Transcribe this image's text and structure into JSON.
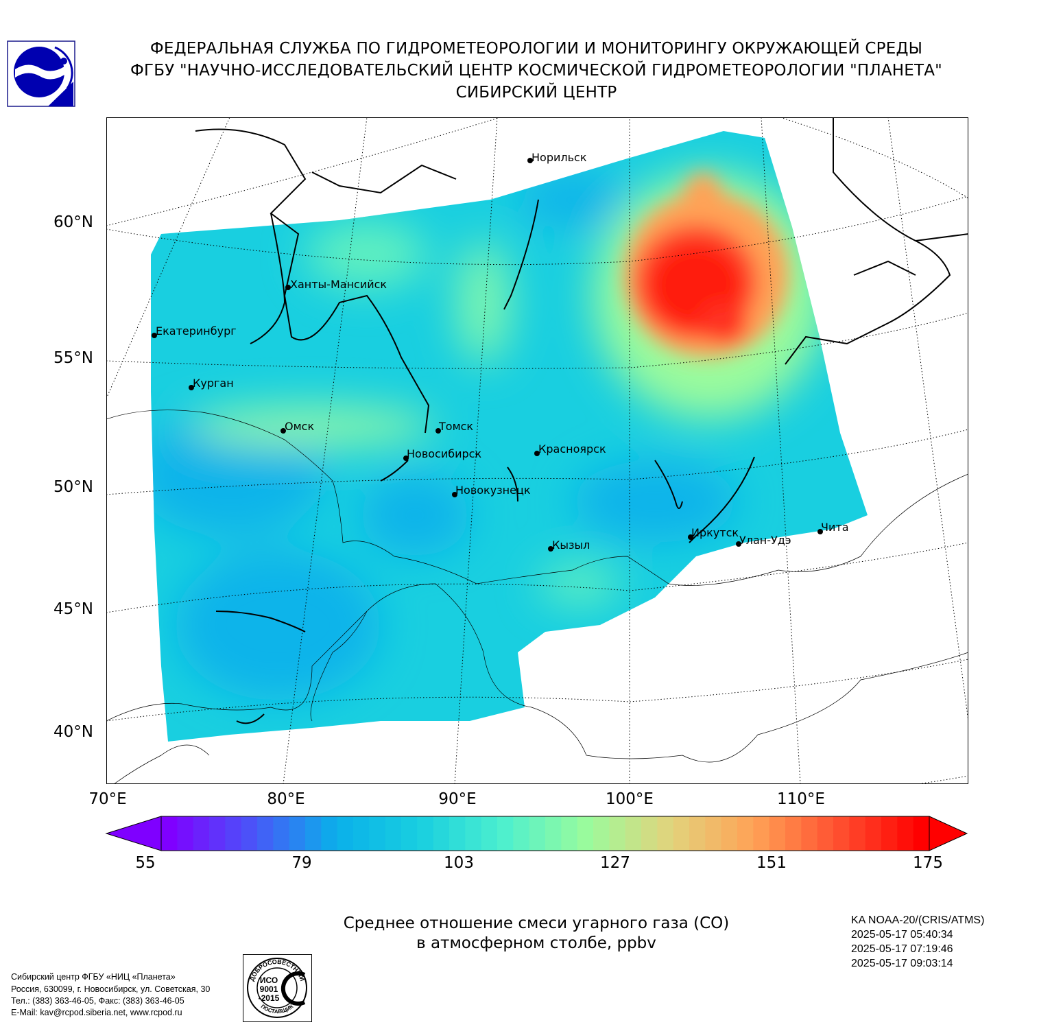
{
  "header": {
    "line1": "ФЕДЕРАЛЬНАЯ СЛУЖБА ПО ГИДРОМЕТЕОРОЛОГИИ И МОНИТОРИНГУ ОКРУЖАЮЩЕЙ СРЕДЫ",
    "line2": "ФГБУ \"НАУЧНО-ИССЛЕДОВАТЕЛЬСКИЙ ЦЕНТР КОСМИЧЕСКОЙ ГИДРОМЕТЕОРОЛОГИИ \"ПЛАНЕТА\"",
    "line3": "СИБИРСКИЙ ЦЕНТР"
  },
  "map": {
    "lat_labels": [
      "60°N",
      "55°N",
      "50°N",
      "45°N",
      "40°N"
    ],
    "lon_labels": [
      "70°E",
      "80°E",
      "90°E",
      "100°E",
      "110°E"
    ],
    "cities": [
      "Норильск",
      "Ханты-Мансийск",
      "Екатеринбург",
      "Курган",
      "Омск",
      "Томск",
      "Новосибирск",
      "Красноярск",
      "Новокузнецк",
      "Кызыл",
      "Иркутск",
      "Улан-Удэ",
      "Чита"
    ]
  },
  "colorbar": {
    "ticks": [
      "55",
      "79",
      "103",
      "127",
      "151",
      "175"
    ],
    "range": [
      55,
      175
    ],
    "colors": [
      "#7f00ff",
      "#4a55f8",
      "#0ab0ea",
      "#19cfe0",
      "#4df0ce",
      "#9bfb9c",
      "#e2d37c",
      "#ffa256",
      "#ff5030",
      "#ff0000"
    ]
  },
  "caption": {
    "line1": "Среднее отношение смеси угарного газа (CO)",
    "line2": "в атмосферном столбе, ppbv"
  },
  "satellite": {
    "name": "KA NOAA-20/(CRIS/ATMS)",
    "times": [
      "2025-05-17 05:40:34",
      "2025-05-17 07:19:46",
      "2025-05-17 09:03:14"
    ]
  },
  "footer": {
    "org": "Сибирский центр ФГБУ «НИЦ «Планета»",
    "address": "Россия, 630099, г. Новосибирск, ул. Советская, 30",
    "phone": "Тел.: (383) 363-46-05, Факс: (383) 363-46-05",
    "email": "E-Mail: kav@rcpod.siberia.net, www.rcpod.ru"
  },
  "iso_badge": {
    "arc_top": "ДОБРОСОВЕСТНЫЙ",
    "line1": "ИСО",
    "line2": "9001",
    "line3": "-2015",
    "arc_bottom": "ПОСТАВЩИК"
  }
}
